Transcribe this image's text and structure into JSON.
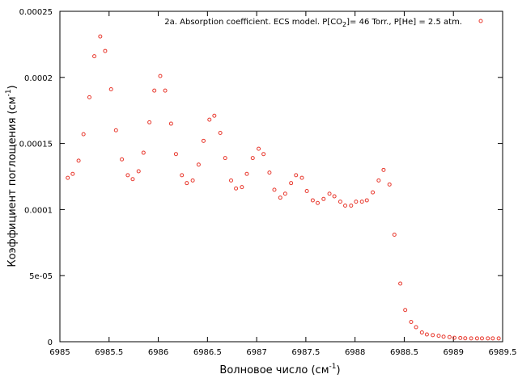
{
  "chart_data": {
    "type": "scatter",
    "title": "",
    "xlabel": {
      "text": "Волновое число (см",
      "sup": "-1",
      "tail": ")"
    },
    "ylabel": {
      "text": "Коэффициент поглощения (см",
      "sup": "-1",
      "tail": ")"
    },
    "xlim": [
      6985,
      6989.5
    ],
    "ylim": [
      0,
      0.00025
    ],
    "x_ticks": [
      6985,
      6985.5,
      6986,
      6986.5,
      6987,
      6987.5,
      6988,
      6988.5,
      6989,
      6989.5
    ],
    "x_tick_labels": [
      "6985",
      "6985.5",
      "6986",
      "6986.5",
      "6987",
      "6987.5",
      "6988",
      "6988.5",
      "6989",
      "6989.5"
    ],
    "y_ticks": [
      0,
      5e-05,
      0.0001,
      0.00015,
      0.0002,
      0.00025
    ],
    "y_tick_labels": [
      "0",
      "5e-05",
      "0.0001",
      "0.00015",
      "0.0002",
      "0.00025"
    ],
    "grid": false,
    "legend_position": "top-right",
    "marker_color": "#e8372c",
    "series": [
      {
        "legend": {
          "pre": "2a. Absorption coefficient. ECS model. P[CO",
          "sub": "2",
          "post": "]= 46 Torr., P[He] = 2.5 atm."
        },
        "x": [
          6985.08,
          6985.13,
          6985.19,
          6985.24,
          6985.3,
          6985.35,
          6985.41,
          6985.46,
          6985.52,
          6985.57,
          6985.63,
          6985.69,
          6985.74,
          6985.8,
          6985.85,
          6985.91,
          6985.96,
          6986.02,
          6986.07,
          6986.13,
          6986.18,
          6986.24,
          6986.29,
          6986.35,
          6986.41,
          6986.46,
          6986.52,
          6986.57,
          6986.63,
          6986.68,
          6986.74,
          6986.79,
          6986.85,
          6986.9,
          6986.96,
          6987.02,
          6987.07,
          6987.13,
          6987.18,
          6987.24,
          6987.29,
          6987.35,
          6987.4,
          6987.46,
          6987.51,
          6987.57,
          6987.62,
          6987.68,
          6987.74,
          6987.79,
          6987.85,
          6987.9,
          6987.96,
          6988.01,
          6988.07,
          6988.12,
          6988.18,
          6988.24,
          6988.29,
          6988.35,
          6988.4,
          6988.46,
          6988.51,
          6988.57,
          6988.62,
          6988.68,
          6988.73,
          6988.79,
          6988.85,
          6988.9,
          6988.96,
          6989.01,
          6989.07,
          6989.12,
          6989.18,
          6989.24,
          6989.29,
          6989.35,
          6989.4,
          6989.46
        ],
        "y": [
          0.000124,
          0.000127,
          0.000137,
          0.000157,
          0.000185,
          0.000216,
          0.000231,
          0.00022,
          0.000191,
          0.00016,
          0.000138,
          0.000126,
          0.000123,
          0.000129,
          0.000143,
          0.000166,
          0.00019,
          0.000201,
          0.00019,
          0.000165,
          0.000142,
          0.000126,
          0.00012,
          0.000122,
          0.000134,
          0.000152,
          0.000168,
          0.000171,
          0.000158,
          0.000139,
          0.000122,
          0.000116,
          0.000117,
          0.000127,
          0.000139,
          0.000146,
          0.000142,
          0.000128,
          0.000115,
          0.000109,
          0.000112,
          0.00012,
          0.000126,
          0.000124,
          0.000114,
          0.000107,
          0.000105,
          0.000108,
          0.000112,
          0.00011,
          0.000106,
          0.000103,
          0.000103,
          0.000106,
          0.000106,
          0.000107,
          0.000113,
          0.000122,
          0.00013,
          0.000119,
          8.1e-05,
          4.4e-05,
          2.4e-05,
          1.5e-05,
          1.1e-05,
          7e-06,
          5.5e-06,
          5e-06,
          4.5e-06,
          3.8e-06,
          3.5e-06,
          3e-06,
          2.8e-06,
          2.6e-06,
          2.5e-06,
          2.5e-06,
          2.5e-06,
          2.5e-06,
          2.5e-06,
          2.5e-06
        ]
      }
    ]
  }
}
